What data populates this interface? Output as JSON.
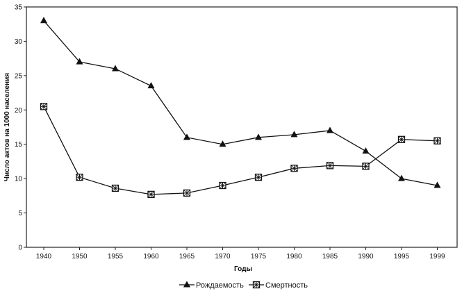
{
  "chart_data": {
    "type": "line",
    "xlabel": "Годы",
    "ylabel": "Число актов на 1000 населения",
    "categories": [
      "1940",
      "1950",
      "1955",
      "1960",
      "1965",
      "1970",
      "1975",
      "1980",
      "1985",
      "1990",
      "1995",
      "1999"
    ],
    "ylim": [
      0,
      35
    ],
    "yticks": [
      0,
      5,
      10,
      15,
      20,
      25,
      30,
      35
    ],
    "grid": false,
    "legend_position": "bottom",
    "series": [
      {
        "name": "Рождаемость",
        "marker": "triangle",
        "values": [
          33.0,
          27.0,
          26.0,
          23.5,
          16.0,
          15.0,
          16.0,
          16.4,
          17.0,
          14.0,
          10.0,
          9.0
        ]
      },
      {
        "name": "Смертность",
        "marker": "square",
        "values": [
          20.5,
          10.2,
          8.6,
          7.7,
          7.9,
          9.0,
          10.2,
          11.5,
          11.9,
          11.8,
          15.7,
          15.5
        ]
      }
    ],
    "colors": {
      "line": "#111111",
      "frame": "#222222"
    }
  }
}
